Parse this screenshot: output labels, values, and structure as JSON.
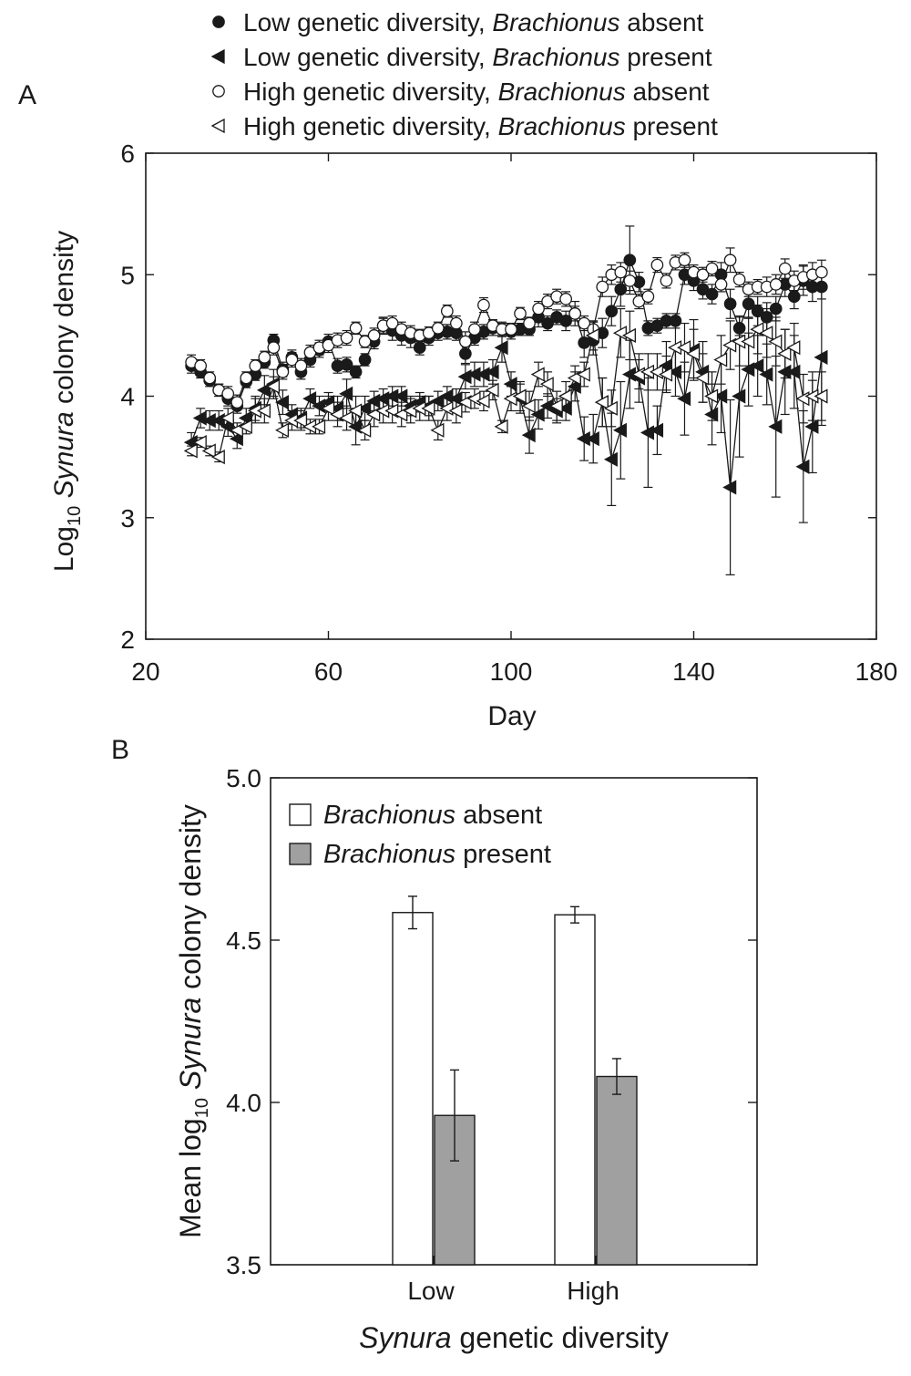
{
  "chart_data": [
    {
      "type": "line",
      "panel_label": "A",
      "xlabel": "Day",
      "ylabel_parts": [
        "Log",
        "10",
        " ",
        "Synura",
        " colony density"
      ],
      "xlim": [
        20,
        180
      ],
      "ylim": [
        2,
        6
      ],
      "xticks": [
        20,
        60,
        100,
        140,
        180
      ],
      "yticks": [
        2,
        3,
        4,
        5,
        6
      ],
      "grid": false,
      "legend_position": "top",
      "legend": [
        {
          "marker": "filled-circle",
          "parts": [
            "Low genetic diversity, ",
            "Brachionus",
            " absent"
          ]
        },
        {
          "marker": "filled-triangle",
          "parts": [
            "Low genetic diversity, ",
            "Brachionus",
            " present"
          ]
        },
        {
          "marker": "open-circle",
          "parts": [
            "High genetic diversity, ",
            "Brachionus",
            " absent"
          ]
        },
        {
          "marker": "open-triangle",
          "parts": [
            "High genetic diversity, ",
            "Brachionus",
            " present"
          ]
        }
      ],
      "x": [
        30,
        32,
        34,
        36,
        38,
        40,
        42,
        44,
        46,
        48,
        50,
        52,
        54,
        56,
        58,
        60,
        62,
        64,
        66,
        68,
        70,
        72,
        74,
        76,
        78,
        80,
        82,
        84,
        86,
        88,
        90,
        92,
        94,
        96,
        98,
        100,
        102,
        104,
        106,
        108,
        110,
        112,
        114,
        116,
        118,
        120,
        122,
        124,
        126,
        128,
        130,
        132,
        134,
        136,
        138,
        140,
        142,
        144,
        146,
        148,
        150,
        152,
        154,
        156,
        158,
        160,
        162,
        164,
        166,
        168
      ],
      "series": [
        {
          "marker": "filled-circle",
          "values": [
            4.25,
            4.2,
            4.13,
            4.05,
            3.98,
            3.92,
            4.12,
            4.18,
            4.28,
            4.46,
            4.22,
            4.32,
            4.2,
            4.3,
            4.38,
            4.45,
            4.25,
            4.26,
            4.2,
            4.3,
            4.45,
            4.58,
            4.54,
            4.5,
            4.48,
            4.4,
            4.48,
            4.52,
            4.53,
            4.52,
            4.35,
            4.48,
            4.53,
            4.56,
            4.55,
            4.53,
            4.55,
            4.55,
            4.65,
            4.6,
            4.65,
            4.62,
            4.68,
            4.44,
            4.46,
            4.52,
            4.7,
            4.88,
            5.12,
            4.94,
            4.56,
            4.58,
            4.62,
            4.62,
            5.0,
            4.95,
            4.88,
            4.84,
            5.0,
            4.76,
            4.56,
            4.76,
            4.7,
            4.65,
            4.72,
            4.92,
            4.82,
            4.95,
            4.9,
            4.9
          ],
          "err": [
            0.06,
            0.05,
            0.05,
            0.05,
            0.06,
            0.06,
            0.05,
            0.05,
            0.05,
            0.05,
            0.06,
            0.06,
            0.06,
            0.06,
            0.06,
            0.06,
            0.06,
            0.06,
            0.05,
            0.05,
            0.06,
            0.07,
            0.08,
            0.08,
            0.08,
            0.06,
            0.06,
            0.06,
            0.06,
            0.06,
            0.08,
            0.06,
            0.06,
            0.06,
            0.06,
            0.06,
            0.05,
            0.05,
            0.08,
            0.06,
            0.06,
            0.08,
            0.1,
            0.12,
            0.12,
            0.12,
            0.12,
            0.14,
            0.28,
            0.08,
            0.06,
            0.06,
            0.06,
            0.06,
            0.08,
            0.08,
            0.08,
            0.08,
            0.1,
            0.12,
            0.1,
            0.12,
            0.12,
            0.12,
            0.1,
            0.1,
            0.1,
            0.12,
            0.12,
            0.1
          ]
        },
        {
          "marker": "filled-triangle",
          "values": [
            3.62,
            3.82,
            3.8,
            3.8,
            3.75,
            3.65,
            3.82,
            3.9,
            4.05,
            4.1,
            3.95,
            3.85,
            3.82,
            3.98,
            3.92,
            3.95,
            3.9,
            4.02,
            3.75,
            3.9,
            3.96,
            3.98,
            4.0,
            4.0,
            3.92,
            3.95,
            3.92,
            3.96,
            4.0,
            3.98,
            4.16,
            4.18,
            4.18,
            4.2,
            4.4,
            4.1,
            3.98,
            3.68,
            3.85,
            3.92,
            3.88,
            3.9,
            4.08,
            3.65,
            3.65,
            3.95,
            3.48,
            3.72,
            4.18,
            4.15,
            3.7,
            3.72,
            4.25,
            4.2,
            3.98,
            4.38,
            4.2,
            3.85,
            4.0,
            3.25,
            4.0,
            4.22,
            4.25,
            4.18,
            3.75,
            4.2,
            4.2,
            3.42,
            3.75,
            4.32
          ],
          "err": [
            0.08,
            0.08,
            0.08,
            0.08,
            0.08,
            0.08,
            0.08,
            0.1,
            0.12,
            0.12,
            0.1,
            0.08,
            0.08,
            0.08,
            0.08,
            0.08,
            0.1,
            0.12,
            0.15,
            0.1,
            0.08,
            0.08,
            0.08,
            0.08,
            0.08,
            0.08,
            0.08,
            0.08,
            0.08,
            0.08,
            0.1,
            0.1,
            0.1,
            0.1,
            0.12,
            0.1,
            0.12,
            0.15,
            0.12,
            0.1,
            0.1,
            0.1,
            0.12,
            0.18,
            0.2,
            0.2,
            0.38,
            0.4,
            0.28,
            0.2,
            0.45,
            0.2,
            0.2,
            0.2,
            0.3,
            0.25,
            0.25,
            0.25,
            0.3,
            0.72,
            0.5,
            0.3,
            0.25,
            0.25,
            0.58,
            0.35,
            0.3,
            0.46,
            0.38,
            0.56
          ]
        },
        {
          "marker": "open-circle",
          "values": [
            4.28,
            4.25,
            4.15,
            4.05,
            4.02,
            3.95,
            4.15,
            4.25,
            4.32,
            4.4,
            4.2,
            4.3,
            4.25,
            4.36,
            4.4,
            4.42,
            4.46,
            4.48,
            4.56,
            4.45,
            4.5,
            4.58,
            4.6,
            4.55,
            4.52,
            4.5,
            4.52,
            4.56,
            4.7,
            4.6,
            4.45,
            4.55,
            4.75,
            4.58,
            4.55,
            4.55,
            4.68,
            4.6,
            4.72,
            4.78,
            4.82,
            4.8,
            4.68,
            4.6,
            4.55,
            4.9,
            5.0,
            5.02,
            4.95,
            4.78,
            4.82,
            5.08,
            4.95,
            5.1,
            5.12,
            5.02,
            5.0,
            5.05,
            4.92,
            5.12,
            4.96,
            4.88,
            4.9,
            4.9,
            4.92,
            5.05,
            4.95,
            4.98,
            5.0,
            5.02
          ],
          "err": [
            0.06,
            0.05,
            0.05,
            0.05,
            0.06,
            0.06,
            0.05,
            0.05,
            0.05,
            0.06,
            0.06,
            0.06,
            0.06,
            0.06,
            0.06,
            0.06,
            0.06,
            0.06,
            0.05,
            0.05,
            0.06,
            0.06,
            0.06,
            0.06,
            0.06,
            0.05,
            0.05,
            0.05,
            0.05,
            0.06,
            0.08,
            0.06,
            0.06,
            0.05,
            0.05,
            0.05,
            0.05,
            0.05,
            0.06,
            0.06,
            0.06,
            0.06,
            0.06,
            0.06,
            0.06,
            0.08,
            0.08,
            0.08,
            0.08,
            0.06,
            0.06,
            0.06,
            0.06,
            0.06,
            0.06,
            0.06,
            0.06,
            0.06,
            0.06,
            0.1,
            0.06,
            0.06,
            0.06,
            0.08,
            0.08,
            0.08,
            0.08,
            0.1,
            0.1,
            0.1
          ]
        },
        {
          "marker": "open-triangle",
          "values": [
            3.55,
            3.62,
            3.55,
            3.5,
            3.82,
            3.72,
            3.75,
            3.88,
            3.88,
            4.08,
            3.72,
            3.8,
            3.8,
            3.75,
            3.75,
            3.9,
            3.85,
            3.82,
            3.88,
            3.72,
            3.85,
            3.88,
            3.88,
            3.85,
            3.88,
            3.9,
            3.9,
            3.72,
            3.9,
            3.88,
            3.95,
            3.98,
            3.96,
            4.05,
            3.75,
            3.98,
            4.0,
            3.92,
            4.18,
            4.1,
            3.92,
            4.0,
            4.15,
            4.18,
            4.5,
            3.95,
            3.9,
            4.52,
            4.5,
            4.18,
            4.2,
            4.2,
            4.18,
            4.4,
            4.4,
            4.35,
            4.15,
            4.0,
            4.3,
            4.42,
            4.45,
            4.45,
            4.55,
            4.52,
            4.45,
            4.35,
            4.4,
            3.98,
            4.0,
            4.0
          ],
          "err": [
            0.04,
            0.04,
            0.04,
            0.04,
            0.08,
            0.06,
            0.06,
            0.1,
            0.1,
            0.08,
            0.06,
            0.08,
            0.08,
            0.06,
            0.06,
            0.1,
            0.1,
            0.1,
            0.12,
            0.08,
            0.1,
            0.1,
            0.1,
            0.1,
            0.1,
            0.1,
            0.1,
            0.08,
            0.1,
            0.1,
            0.08,
            0.08,
            0.08,
            0.08,
            0.05,
            0.1,
            0.12,
            0.12,
            0.1,
            0.1,
            0.12,
            0.12,
            0.1,
            0.1,
            0.12,
            0.2,
            0.15,
            0.2,
            0.2,
            0.12,
            0.15,
            0.15,
            0.15,
            0.2,
            0.2,
            0.2,
            0.2,
            0.2,
            0.2,
            0.2,
            0.2,
            0.2,
            0.2,
            0.2,
            0.2,
            0.2,
            0.2,
            0.2,
            0.2,
            0.2
          ]
        }
      ]
    },
    {
      "type": "bar",
      "panel_label": "B",
      "xlabel_parts": [
        "Synura",
        " genetic diversity"
      ],
      "ylabel_parts": [
        "Mean log",
        "10",
        " ",
        "Synura",
        " colony density"
      ],
      "categories": [
        "Low",
        "High"
      ],
      "ylim": [
        3.5,
        5.0
      ],
      "yticks": [
        "3.5",
        "4.0",
        "4.5",
        "5.0"
      ],
      "ytick_values": [
        3.5,
        4.0,
        4.5,
        5.0
      ],
      "legend_position": "top-left",
      "series": [
        {
          "legend_parts": [
            "Brachionus",
            " absent"
          ],
          "color": "#ffffff",
          "values": [
            4.585,
            4.578
          ],
          "err": [
            0.05,
            0.025
          ]
        },
        {
          "legend_parts": [
            "Brachionus",
            " present"
          ],
          "color": "#a0a0a0",
          "values": [
            3.96,
            4.08
          ],
          "err": [
            0.14,
            0.055
          ]
        }
      ]
    }
  ]
}
